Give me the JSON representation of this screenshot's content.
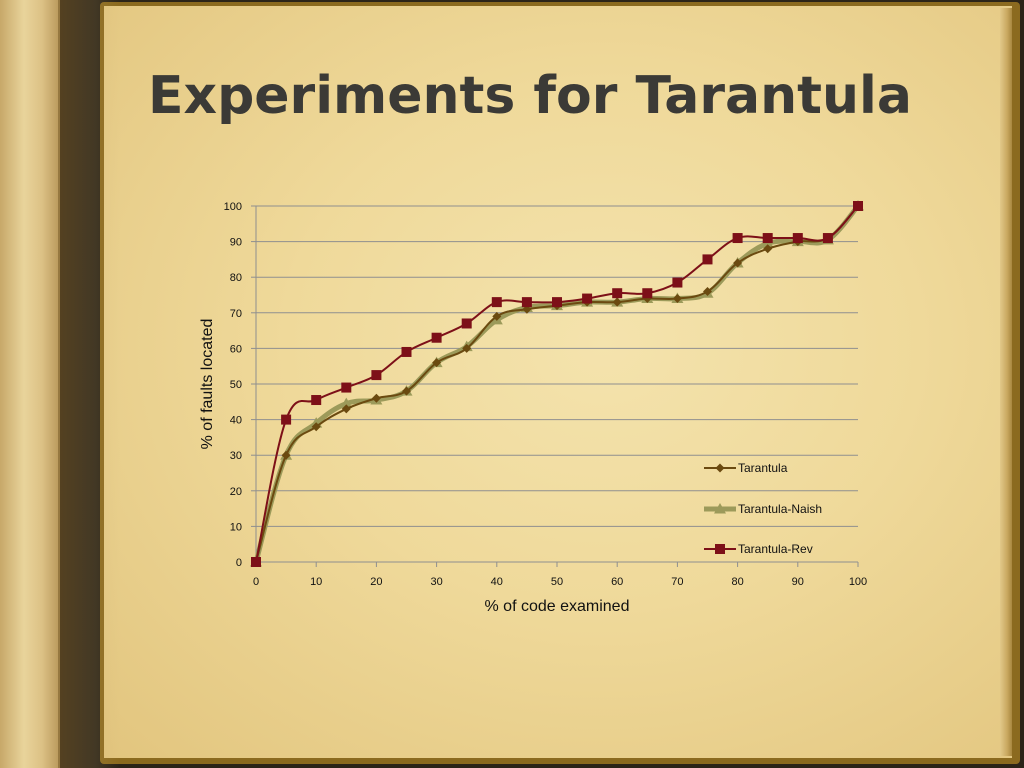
{
  "slide": {
    "title": "Experiments for Tarantula"
  },
  "colors": {
    "tarantula": "#6b4a10",
    "tarantula_naish": "#9c9a5a",
    "tarantula_rev": "#7d1018",
    "gridline": "#8f8f8f"
  },
  "chart_data": {
    "type": "line",
    "xlabel": "% of code examined",
    "ylabel": "% of faults located",
    "xlim": [
      0,
      100
    ],
    "ylim": [
      0,
      100
    ],
    "x_ticks": [
      0,
      10,
      20,
      30,
      40,
      50,
      60,
      70,
      80,
      90,
      100
    ],
    "y_ticks": [
      0,
      10,
      20,
      30,
      40,
      50,
      60,
      70,
      80,
      90,
      100
    ],
    "grid": "horizontal",
    "legend_position": "right",
    "x": [
      0,
      5,
      10,
      15,
      20,
      25,
      30,
      35,
      40,
      45,
      50,
      55,
      60,
      65,
      70,
      75,
      80,
      85,
      90,
      95,
      100
    ],
    "series": [
      {
        "name": "Tarantula",
        "marker": "diamond",
        "values": [
          0,
          30,
          38,
          43,
          46,
          48,
          56,
          60,
          69,
          71,
          72,
          73,
          73,
          74,
          74,
          76,
          84,
          88,
          90,
          91,
          100
        ]
      },
      {
        "name": "Tarantula-Naish",
        "marker": "triangle",
        "values": [
          0,
          30,
          39,
          44.5,
          45.5,
          48,
          56,
          60.5,
          68,
          71.5,
          72,
          73,
          73,
          74,
          74,
          75.5,
          84,
          89.5,
          90,
          90.5,
          100
        ]
      },
      {
        "name": "Tarantula-Rev",
        "marker": "square",
        "values": [
          0,
          40,
          45.5,
          49,
          52.5,
          59,
          63,
          67,
          73,
          73,
          73,
          74,
          75.5,
          75.5,
          78.5,
          85,
          91,
          91,
          91,
          91,
          100
        ]
      }
    ]
  }
}
